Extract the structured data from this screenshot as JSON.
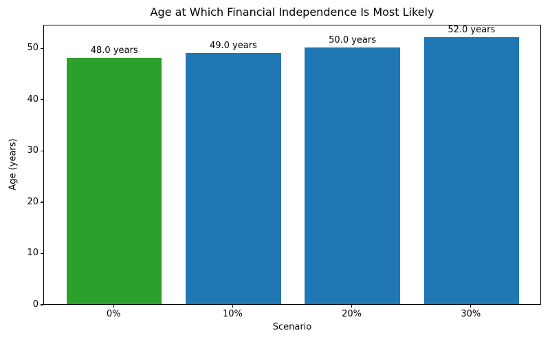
{
  "chart_data": {
    "type": "bar",
    "title": "Age at Which Financial Independence Is Most Likely",
    "xlabel": "Scenario",
    "ylabel": "Age (years)",
    "categories": [
      "0%",
      "10%",
      "20%",
      "30%"
    ],
    "values": [
      48.0,
      49.0,
      50.0,
      52.0
    ],
    "bar_labels": [
      "48.0 years",
      "49.0 years",
      "50.0 years",
      "52.0 years"
    ],
    "bar_colors": [
      "#2ca02c",
      "#1f77b4",
      "#1f77b4",
      "#1f77b4"
    ],
    "highlight_color": "#2ca02c",
    "default_bar_color": "#1f77b4",
    "ylim": [
      0,
      54.6
    ],
    "yticks": [
      0,
      10,
      20,
      30,
      40,
      50
    ],
    "bar_width_fraction": 0.8,
    "grid": false,
    "legend": "none",
    "background_color": "#ffffff",
    "text_color": "#000000"
  }
}
